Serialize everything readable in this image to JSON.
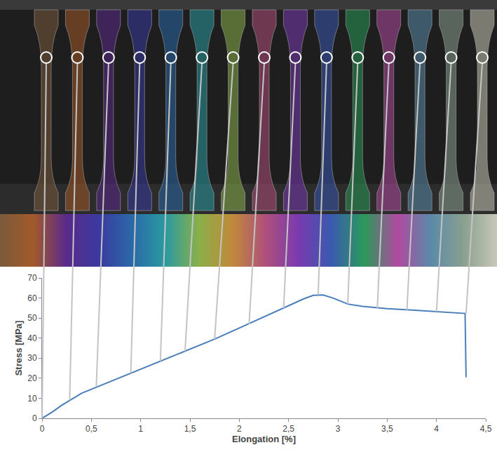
{
  "chart_data": {
    "type": "line",
    "x_title": "Elongation [%]",
    "y_title": "Stress [MPa]",
    "x": [
      0,
      0.1,
      0.2,
      0.3,
      0.4,
      0.5,
      0.75,
      1,
      1.25,
      1.5,
      1.75,
      2,
      2.25,
      2.5,
      2.65,
      2.75,
      2.85,
      2.95,
      3.1,
      3.25,
      3.5,
      3.75,
      4,
      4.25,
      4.29,
      4.3
    ],
    "values": [
      0,
      3,
      6.5,
      9.5,
      12.5,
      14.5,
      19.5,
      24.5,
      29.5,
      34.5,
      39.5,
      45,
      50.5,
      56,
      59.5,
      61.3,
      61.5,
      60,
      57,
      55.8,
      54.7,
      54,
      53.2,
      52.5,
      52.3,
      20.5
    ],
    "color": "#4a7ebb",
    "xlim": [
      0,
      4.5
    ],
    "xticks": [
      0,
      {
        "value": 0.5,
        "label": "0,5"
      },
      1,
      {
        "value": 1.5,
        "label": "1,5"
      },
      2,
      {
        "value": 2.5,
        "label": "2,5"
      },
      3,
      {
        "value": 3.5,
        "label": "3,5"
      },
      4,
      {
        "value": 4.5,
        "label": "4,5"
      }
    ],
    "ylim": [
      0,
      70
    ],
    "yticks": [
      0,
      10,
      20,
      30,
      40,
      50,
      60,
      70
    ],
    "grid": false,
    "snapshots": {
      "x": [
        0,
        0.28,
        0.55,
        0.9,
        1.2,
        1.45,
        1.75,
        2.1,
        2.45,
        2.8,
        3.1,
        3.4,
        3.7,
        4.0,
        4.3
      ],
      "y": [
        0,
        9,
        16,
        22.5,
        28.5,
        33.5,
        39.5,
        47,
        55,
        61.5,
        57,
        55,
        54,
        53.2,
        52.3
      ]
    }
  }
}
